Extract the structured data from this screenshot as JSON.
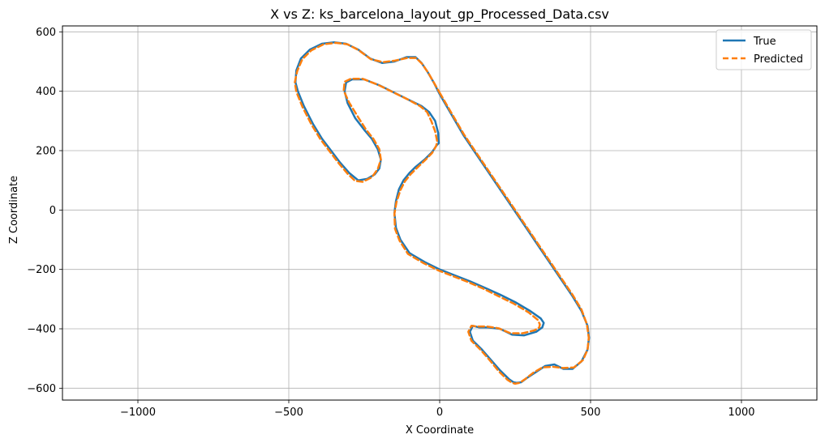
{
  "chart_data": {
    "type": "line",
    "title": "X vs Z: ks_barcelona_layout_gp_Processed_Data.csv",
    "xlabel": "X Coordinate",
    "ylabel": "Z Coordinate",
    "xlim": [
      -1250,
      1250
    ],
    "ylim": [
      -640,
      620
    ],
    "xticks": [
      -1000,
      -500,
      0,
      500,
      1000
    ],
    "xtick_labels": [
      "−1000",
      "−500",
      "0",
      "500",
      "1000"
    ],
    "yticks": [
      -600,
      -400,
      -200,
      0,
      200,
      400,
      600
    ],
    "ytick_labels": [
      "−600",
      "−400",
      "−200",
      "0",
      "200",
      "400",
      "600"
    ],
    "grid": true,
    "legend_position": "top-right",
    "series": [
      {
        "name": "True",
        "color": "#1f77b4",
        "dash": "solid",
        "x": [
          0,
          40,
          80,
          120,
          160,
          200,
          240,
          280,
          320,
          360,
          400,
          440,
          470,
          490,
          495,
          490,
          470,
          440,
          410,
          380,
          350,
          320,
          290,
          270,
          255,
          245,
          230,
          200,
          170,
          140,
          110,
          100,
          110,
          130,
          160,
          200,
          240,
          280,
          320,
          340,
          345,
          335,
          300,
          250,
          200,
          150,
          100,
          50,
          0,
          -50,
          -100,
          -130,
          -145,
          -150,
          -145,
          -135,
          -120,
          -100,
          -80,
          -50,
          -25,
          -10,
          -3,
          -5,
          -15,
          -35,
          -60,
          -100,
          -150,
          -200,
          -250,
          -290,
          -310,
          -315,
          -305,
          -280,
          -250,
          -225,
          -205,
          -195,
          -200,
          -215,
          -240,
          -270,
          -300,
          -330,
          -360,
          -390,
          -420,
          -450,
          -470,
          -478,
          -475,
          -460,
          -430,
          -390,
          -350,
          -310,
          -270,
          -230,
          -190,
          -150,
          -110,
          -80,
          -60,
          -40,
          -20,
          0
        ],
        "y": [
          390,
          320,
          250,
          190,
          130,
          70,
          10,
          -50,
          -110,
          -170,
          -230,
          -290,
          -340,
          -390,
          -430,
          -470,
          -510,
          -535,
          -535,
          -520,
          -525,
          -545,
          -565,
          -580,
          -582,
          -580,
          -570,
          -540,
          -505,
          -470,
          -440,
          -410,
          -390,
          -395,
          -395,
          -400,
          -420,
          -422,
          -410,
          -395,
          -380,
          -365,
          -340,
          -310,
          -285,
          -262,
          -240,
          -220,
          -200,
          -175,
          -145,
          -100,
          -60,
          -10,
          30,
          70,
          100,
          125,
          145,
          170,
          195,
          218,
          225,
          260,
          300,
          330,
          350,
          370,
          395,
          420,
          440,
          440,
          430,
          400,
          360,
          310,
          270,
          240,
          205,
          170,
          140,
          120,
          105,
          100,
          125,
          160,
          200,
          240,
          290,
          350,
          400,
          430,
          470,
          510,
          540,
          560,
          565,
          560,
          540,
          510,
          495,
          500,
          515,
          515,
          495,
          465,
          430,
          390
        ]
      },
      {
        "name": "Predicted",
        "color": "#ff7f0e",
        "dash": "dashed",
        "x": [
          0,
          40,
          80,
          120,
          160,
          200,
          240,
          280,
          320,
          360,
          400,
          440,
          470,
          488,
          494,
          490,
          475,
          445,
          410,
          375,
          340,
          310,
          285,
          265,
          250,
          240,
          225,
          195,
          165,
          135,
          105,
          95,
          105,
          125,
          155,
          195,
          235,
          275,
          315,
          330,
          332,
          325,
          295,
          245,
          195,
          145,
          95,
          45,
          -5,
          -55,
          -105,
          -133,
          -148,
          -150,
          -143,
          -130,
          -115,
          -95,
          -75,
          -48,
          -25,
          -12,
          -8,
          -15,
          -28,
          -42,
          -65,
          -105,
          -155,
          -205,
          -255,
          -295,
          -315,
          -318,
          -300,
          -270,
          -245,
          -220,
          -200,
          -195,
          -205,
          -225,
          -255,
          -280,
          -305,
          -335,
          -365,
          -395,
          -425,
          -455,
          -475,
          -480,
          -472,
          -455,
          -425,
          -385,
          -345,
          -305,
          -268,
          -228,
          -188,
          -148,
          -108,
          -78,
          -58,
          -38,
          -18,
          0
        ],
        "y": [
          395,
          325,
          255,
          195,
          135,
          75,
          15,
          -45,
          -105,
          -165,
          -225,
          -285,
          -335,
          -385,
          -430,
          -470,
          -505,
          -530,
          -532,
          -528,
          -530,
          -548,
          -568,
          -582,
          -585,
          -582,
          -572,
          -542,
          -505,
          -470,
          -440,
          -410,
          -390,
          -392,
          -392,
          -398,
          -415,
          -415,
          -405,
          -395,
          -385,
          -370,
          -345,
          -315,
          -290,
          -265,
          -243,
          -223,
          -203,
          -178,
          -148,
          -103,
          -63,
          -13,
          27,
          67,
          97,
          122,
          142,
          168,
          192,
          215,
          230,
          265,
          300,
          330,
          350,
          372,
          397,
          422,
          442,
          442,
          432,
          402,
          362,
          312,
          272,
          240,
          205,
          170,
          138,
          110,
          95,
          98,
          122,
          158,
          198,
          238,
          288,
          348,
          398,
          430,
          468,
          508,
          538,
          558,
          563,
          558,
          538,
          508,
          498,
          503,
          512,
          512,
          492,
          462,
          427,
          395
        ]
      }
    ]
  }
}
